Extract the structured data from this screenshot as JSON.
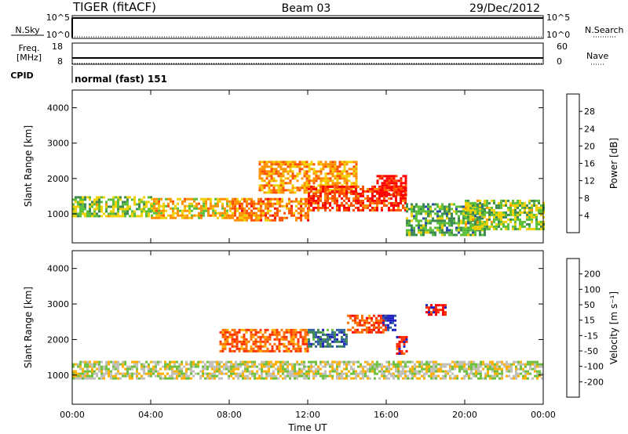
{
  "header": {
    "radar": "TIGER (fitACF)",
    "beam": "Beam 03",
    "date": "29/Dec/2012"
  },
  "status_panels": {
    "nsky": {
      "label": "N.Sky",
      "ticks": [
        "10^5",
        "10^0"
      ]
    },
    "nsearch": {
      "label": "N.Search",
      "ticks": [
        "10^5",
        "10^0"
      ]
    },
    "freq": {
      "label_line1": "Freq.",
      "label_line2": "[MHz]",
      "ticks": [
        "18",
        "8"
      ]
    },
    "nave": {
      "label": "Nave",
      "ticks": [
        "60",
        "0"
      ]
    },
    "cpid": {
      "label": "CPID",
      "text": "normal (fast) 151"
    }
  },
  "chart_data": [
    {
      "type": "heatmap",
      "title": "",
      "xlabel": "Time UT",
      "ylabel": "Slant Range [km]",
      "xlim_hours": [
        0,
        24
      ],
      "ylim_km": [
        180,
        4500
      ],
      "x_ticks": [
        "00:00",
        "04:00",
        "08:00",
        "12:00",
        "16:00",
        "20:00",
        "00:00"
      ],
      "y_ticks": [
        "1000",
        "2000",
        "3000",
        "4000"
      ],
      "colorbar": {
        "label": "Power [dB]",
        "ticks": [
          "4",
          "8",
          "12",
          "16",
          "20",
          "24",
          "28"
        ],
        "range": [
          0,
          30
        ],
        "colors": [
          "#0000ff",
          "#2a4aa8",
          "#3c8a50",
          "#5cbf3a",
          "#f0d000",
          "#ff9000",
          "#ff5000",
          "#ff0000"
        ]
      },
      "echo_regions": [
        {
          "t_start": 0.0,
          "t_end": 4.0,
          "r_low": 950,
          "r_high": 1500,
          "power": 14
        },
        {
          "t_start": 4.0,
          "t_end": 8.0,
          "r_low": 900,
          "r_high": 1450,
          "power": 18
        },
        {
          "t_start": 8.0,
          "t_end": 12.0,
          "r_low": 850,
          "r_high": 1450,
          "power": 22
        },
        {
          "t_start": 9.5,
          "t_end": 14.5,
          "r_low": 1600,
          "r_high": 2500,
          "power": 20
        },
        {
          "t_start": 12.0,
          "t_end": 17.0,
          "r_low": 1100,
          "r_high": 1800,
          "power": 26
        },
        {
          "t_start": 15.5,
          "t_end": 17.0,
          "r_low": 1550,
          "r_high": 2100,
          "power": 28
        },
        {
          "t_start": 17.0,
          "t_end": 21.0,
          "r_low": 400,
          "r_high": 1300,
          "power": 12
        },
        {
          "t_start": 20.0,
          "t_end": 24.0,
          "r_low": 600,
          "r_high": 1400,
          "power": 14
        }
      ]
    },
    {
      "type": "heatmap",
      "title": "",
      "xlabel": "Time UT",
      "ylabel": "Slant Range [km]",
      "xlim_hours": [
        0,
        24
      ],
      "ylim_km": [
        180,
        4500
      ],
      "x_ticks": [
        "00:00",
        "04:00",
        "08:00",
        "12:00",
        "16:00",
        "20:00",
        "00:00"
      ],
      "y_ticks": [
        "1000",
        "2000",
        "3000",
        "4000"
      ],
      "colorbar": {
        "label": "Velocity [m s⁻¹]",
        "ticks": [
          "200",
          "100",
          "50",
          "15",
          "-15",
          "-50",
          "-100",
          "-200"
        ],
        "range": [
          -250,
          250
        ],
        "colors": [
          "#2020c0",
          "#3060a0",
          "#408a50",
          "#70c040",
          "#c0c0b8",
          "#ffb000",
          "#ff7000",
          "#ff3000",
          "#ff0000"
        ]
      },
      "echo_regions": [
        {
          "t_start": 0.0,
          "t_end": 24.0,
          "r_low": 900,
          "r_high": 1400,
          "velocity": 0
        },
        {
          "t_start": 7.5,
          "t_end": 12.0,
          "r_low": 1700,
          "r_high": 2300,
          "velocity": -120
        },
        {
          "t_start": 12.0,
          "t_end": 14.0,
          "r_low": 1800,
          "r_high": 2300,
          "velocity": 150
        },
        {
          "t_start": 14.0,
          "t_end": 16.0,
          "r_low": 2200,
          "r_high": 2700,
          "velocity": -150
        },
        {
          "t_start": 15.8,
          "t_end": 16.5,
          "r_low": 2300,
          "r_high": 2700,
          "velocity": 220
        },
        {
          "t_start": 16.5,
          "t_end": 17.0,
          "r_low": 1600,
          "r_high": 2100,
          "velocity": -200
        },
        {
          "t_start": 18.0,
          "t_end": 19.0,
          "r_low": 2700,
          "r_high": 3000,
          "velocity": -200
        }
      ]
    }
  ]
}
